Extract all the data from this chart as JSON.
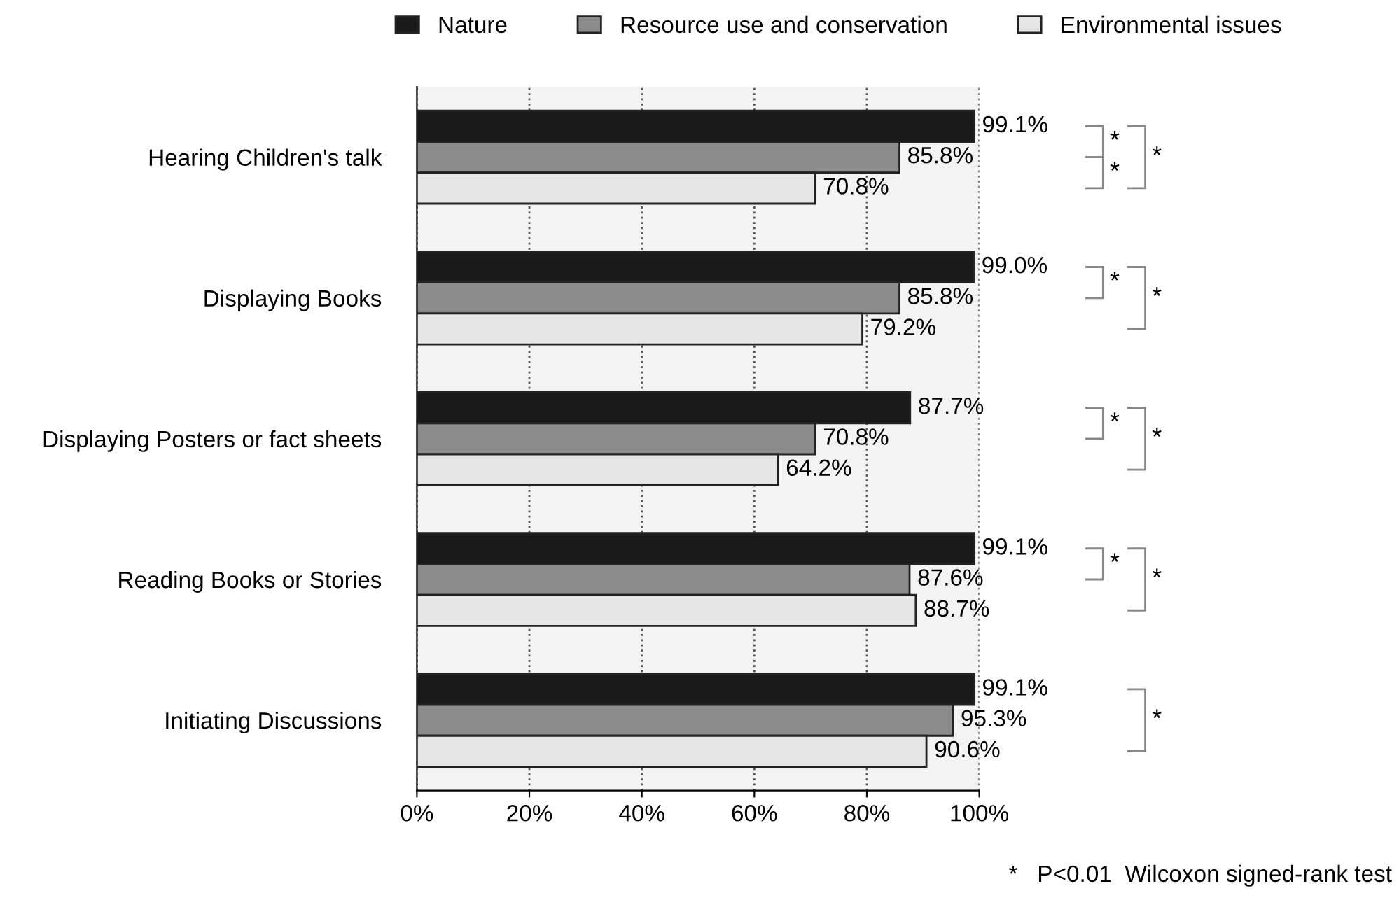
{
  "chart_data": {
    "type": "bar",
    "orientation": "horizontal",
    "categories": [
      "Hearing Children's talk",
      "Displaying Books",
      "Displaying Posters or fact sheets",
      "Reading Books or Stories",
      "Initiating Discussions"
    ],
    "series": [
      {
        "name": "Nature",
        "color": "#1a1a1a",
        "values": [
          99.1,
          99.0,
          87.7,
          99.1,
          99.1
        ],
        "value_labels": [
          "99.1%",
          "99.0%",
          "87.7%",
          "99.1%",
          "99.1%"
        ]
      },
      {
        "name": "Resource use and conservation",
        "color": "#8c8c8c",
        "values": [
          85.8,
          85.8,
          70.8,
          87.6,
          95.3
        ],
        "value_labels": [
          "85.8%",
          "85.8%",
          "70.8%",
          "87.6%",
          "95.3%"
        ]
      },
      {
        "name": "Environmental issues",
        "color": "#e6e6e6",
        "values": [
          70.8,
          79.2,
          64.2,
          88.7,
          90.6
        ],
        "value_labels": [
          "70.8%",
          "79.2%",
          "64.2%",
          "88.7%",
          "90.6%"
        ]
      }
    ],
    "xlim": [
      0,
      100
    ],
    "xticks": [
      {
        "value": 0,
        "label": "0%"
      },
      {
        "value": 20,
        "label": "20%"
      },
      {
        "value": 40,
        "label": "40%"
      },
      {
        "value": 60,
        "label": "60%"
      },
      {
        "value": 80,
        "label": "80%"
      },
      {
        "value": 100,
        "label": "100%"
      }
    ],
    "grid": "x",
    "legend": "top",
    "annotations": [
      "*",
      "*",
      "*",
      "*",
      "*",
      "*",
      "*",
      "*",
      "*",
      "*",
      "*   P<0.01  Wilcoxon signed-rank test"
    ]
  }
}
